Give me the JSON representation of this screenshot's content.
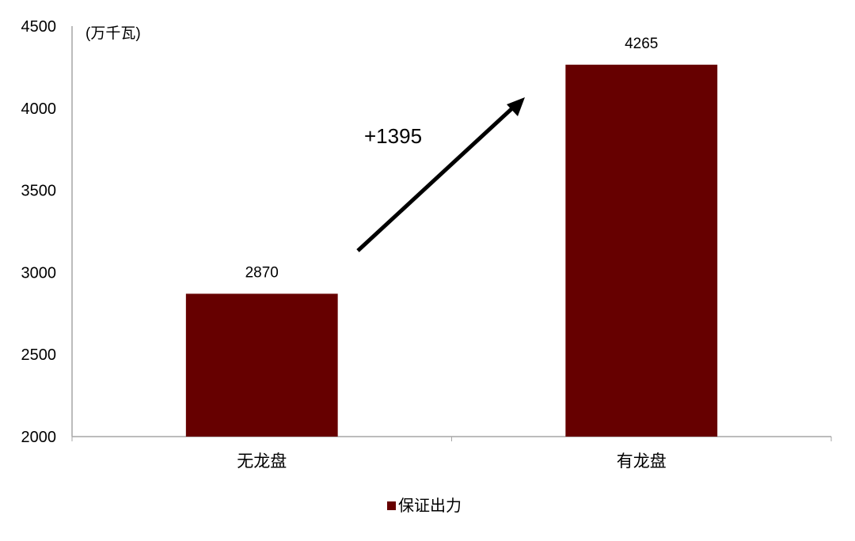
{
  "chart_data": {
    "type": "bar",
    "unit_label": "(万千瓦)",
    "categories": [
      "无龙盘",
      "有龙盘"
    ],
    "series": [
      {
        "name": "保证出力",
        "values": [
          2870,
          4265
        ],
        "color": "#660000"
      }
    ],
    "data_labels": [
      "2870",
      "4265"
    ],
    "ylim": [
      2000,
      4500
    ],
    "yticks": [
      2000,
      2500,
      3000,
      3500,
      4000,
      4500
    ],
    "annotation": {
      "text": "+1395",
      "arrow": "up-right from first bar to second bar"
    },
    "grid": false,
    "legend": "bottom"
  }
}
